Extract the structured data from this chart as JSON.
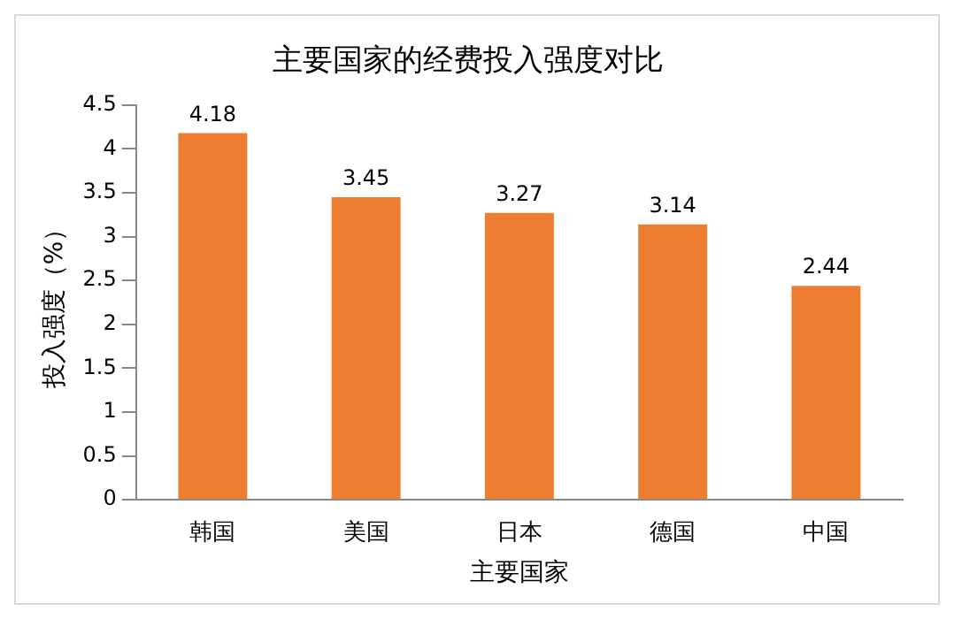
{
  "chart_data": {
    "type": "bar",
    "title": "主要国家的经费投入强度对比",
    "xlabel": "主要国家",
    "ylabel": "投入强度（%）",
    "categories": [
      "韩国",
      "美国",
      "日本",
      "德国",
      "中国"
    ],
    "values": [
      4.18,
      3.45,
      3.27,
      3.14,
      2.44
    ],
    "color": "#ed7d31",
    "ylim": [
      0,
      4.5
    ],
    "yticks": [
      0,
      0.5,
      1,
      1.5,
      2,
      2.5,
      3,
      3.5,
      4,
      4.5
    ],
    "grid": false,
    "legend": false,
    "data_labels": true
  }
}
